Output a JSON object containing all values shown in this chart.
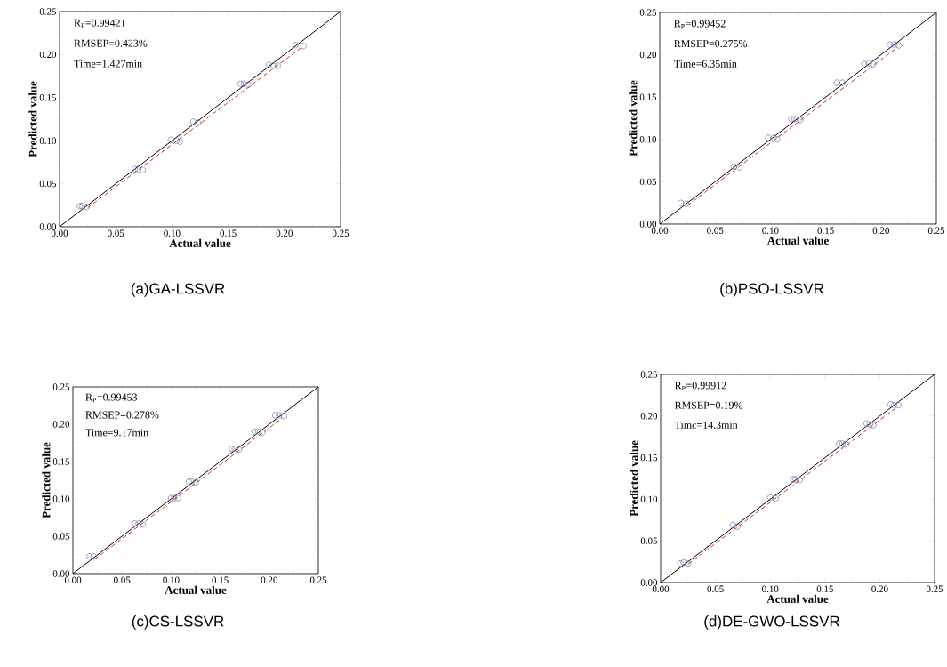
{
  "chart_data": [
    {
      "type": "scatter",
      "title": "(a)GA-LSSVR",
      "xlabel": "Actual value",
      "ylabel": "Predicted value",
      "xlim": [
        0,
        0.25
      ],
      "ylim": [
        0,
        0.25
      ],
      "xticks": [
        {
          "value": 0,
          "label": "0.00"
        },
        {
          "value": 0.05,
          "label": "0.05"
        },
        {
          "value": 0.1,
          "label": "0.10"
        },
        {
          "value": 0.15,
          "label": "0.15"
        },
        {
          "value": 0.2,
          "label": "0.20"
        },
        {
          "value": 0.25,
          "label": "0.25"
        }
      ],
      "yticks": [
        {
          "value": 0,
          "label": "0.00"
        },
        {
          "value": 0.05,
          "label": "0.05"
        },
        {
          "value": 0.1,
          "label": "0.10"
        },
        {
          "value": 0.15,
          "label": "0.15"
        },
        {
          "value": 0.2,
          "label": "0.20"
        },
        {
          "value": 0.25,
          "label": "0.25"
        }
      ],
      "annotations": [
        "R$_{P}$=0.99421",
        "RMSEP=0.423%",
        "Time=1.427min"
      ],
      "series": [
        {
          "marker": "circle",
          "color": "#5a5aa0",
          "x": [
            0.018,
            0.02,
            0.024,
            0.067,
            0.07,
            0.074,
            0.099,
            0.104,
            0.107,
            0.119,
            0.123,
            0.161,
            0.164,
            0.168,
            0.186,
            0.19,
            0.194,
            0.21,
            0.217
          ],
          "values": [
            0.024,
            0.024,
            0.023,
            0.067,
            0.067,
            0.066,
            0.101,
            0.1,
            0.099,
            0.122,
            0.121,
            0.166,
            0.166,
            0.165,
            0.188,
            0.187,
            0.187,
            0.211,
            0.21
          ]
        },
        {
          "type": "line",
          "line_style": "solid",
          "color": "#000000",
          "x": [
            0,
            0.25
          ],
          "values": [
            0,
            0.25
          ]
        },
        {
          "type": "line",
          "line_style": "dashed",
          "color": "#d03030",
          "x": [
            0.025,
            0.215
          ],
          "values": [
            0.022,
            0.208
          ]
        }
      ]
    },
    {
      "type": "scatter",
      "title": "(b)PSO-LSSVR",
      "xlabel": "Actual value",
      "ylabel": "Predicted value",
      "xlim": [
        0,
        0.25
      ],
      "ylim": [
        0,
        0.25
      ],
      "xticks": [
        {
          "value": 0,
          "label": "0.00"
        },
        {
          "value": 0.05,
          "label": "0.05"
        },
        {
          "value": 0.1,
          "label": "0.10"
        },
        {
          "value": 0.15,
          "label": "0.15"
        },
        {
          "value": 0.2,
          "label": "0.20"
        },
        {
          "value": 0.25,
          "label": "0.25"
        }
      ],
      "yticks": [
        {
          "value": 0,
          "label": "0.00"
        },
        {
          "value": 0.05,
          "label": "0.05"
        },
        {
          "value": 0.1,
          "label": "0.10"
        },
        {
          "value": 0.15,
          "label": "0.15"
        },
        {
          "value": 0.2,
          "label": "0.20"
        },
        {
          "value": 0.25,
          "label": "0.25"
        }
      ],
      "annotations": [
        "R$_{P}$=0.99452",
        "RMSEP=0.275%",
        "Time=6.35min"
      ],
      "series": [
        {
          "marker": "circle",
          "color": "#5a5aa0",
          "x": [
            0.019,
            0.024,
            0.067,
            0.072,
            0.098,
            0.103,
            0.106,
            0.119,
            0.122,
            0.127,
            0.16,
            0.165,
            0.185,
            0.189,
            0.193,
            0.208,
            0.212,
            0.216
          ],
          "values": [
            0.025,
            0.024,
            0.068,
            0.067,
            0.102,
            0.102,
            0.1,
            0.124,
            0.124,
            0.123,
            0.167,
            0.167,
            0.189,
            0.19,
            0.189,
            0.212,
            0.212,
            0.211
          ]
        },
        {
          "type": "line",
          "line_style": "solid",
          "color": "#000000",
          "x": [
            0,
            0.25
          ],
          "values": [
            0,
            0.25
          ]
        },
        {
          "type": "line",
          "line_style": "dashed",
          "color": "#d03030",
          "x": [
            0.025,
            0.215
          ],
          "values": [
            0.022,
            0.209
          ]
        }
      ]
    },
    {
      "type": "scatter",
      "title": "(c)CS-LSSVR",
      "xlabel": "Actual value",
      "ylabel": "Predicted value",
      "xlim": [
        0,
        0.25
      ],
      "ylim": [
        0,
        0.25
      ],
      "xticks": [
        {
          "value": 0,
          "label": "0.00"
        },
        {
          "value": 0.05,
          "label": "0.05"
        },
        {
          "value": 0.1,
          "label": "0.10"
        },
        {
          "value": 0.15,
          "label": "0.15"
        },
        {
          "value": 0.2,
          "label": "0.20"
        },
        {
          "value": 0.25,
          "label": "0.25"
        }
      ],
      "yticks": [
        {
          "value": 0,
          "label": "0.00"
        },
        {
          "value": 0.05,
          "label": "0.05"
        },
        {
          "value": 0.1,
          "label": "0.10"
        },
        {
          "value": 0.15,
          "label": "0.15"
        },
        {
          "value": 0.2,
          "label": "0.20"
        },
        {
          "value": 0.25,
          "label": "0.25"
        }
      ],
      "annotations": [
        "R$_{P}$=0.99453",
        "RMSEP=0.278%",
        "Time=9.17min"
      ],
      "series": [
        {
          "marker": "circle",
          "color": "#5a5aa0",
          "x": [
            0.017,
            0.021,
            0.063,
            0.067,
            0.071,
            0.1,
            0.103,
            0.107,
            0.118,
            0.121,
            0.125,
            0.162,
            0.165,
            0.169,
            0.185,
            0.189,
            0.193,
            0.206,
            0.21,
            0.215
          ],
          "values": [
            0.023,
            0.023,
            0.067,
            0.067,
            0.066,
            0.101,
            0.101,
            0.101,
            0.123,
            0.123,
            0.122,
            0.167,
            0.167,
            0.166,
            0.19,
            0.19,
            0.189,
            0.212,
            0.212,
            0.211
          ]
        },
        {
          "type": "line",
          "line_style": "solid",
          "color": "#000000",
          "x": [
            0,
            0.25
          ],
          "values": [
            0,
            0.25
          ]
        },
        {
          "type": "line",
          "line_style": "dashed",
          "color": "#d03030",
          "x": [
            0.022,
            0.213
          ],
          "values": [
            0.019,
            0.208
          ]
        }
      ]
    },
    {
      "type": "scatter",
      "title": "(d)DE-GWO-LSSVR",
      "xlabel": "Actual value",
      "ylabel": "Predicted value",
      "xlim": [
        0,
        0.25
      ],
      "ylim": [
        0,
        0.25
      ],
      "xticks": [
        {
          "value": 0,
          "label": "0.00"
        },
        {
          "value": 0.05,
          "label": "0.05"
        },
        {
          "value": 0.1,
          "label": "0.10"
        },
        {
          "value": 0.15,
          "label": "0.15"
        },
        {
          "value": 0.2,
          "label": "0.20"
        },
        {
          "value": 0.25,
          "label": "0.25"
        }
      ],
      "yticks": [
        {
          "value": 0,
          "label": "0.00"
        },
        {
          "value": 0.05,
          "label": "0.05"
        },
        {
          "value": 0.1,
          "label": "0.10"
        },
        {
          "value": 0.15,
          "label": "0.15"
        },
        {
          "value": 0.2,
          "label": "0.20"
        },
        {
          "value": 0.25,
          "label": "0.25"
        }
      ],
      "annotations": [
        "R$_{P}$=0.99912",
        "RMSEP=0.19%",
        "Timc=14.3min"
      ],
      "series": [
        {
          "marker": "circle",
          "color": "#5a5aa0",
          "x": [
            0.018,
            0.021,
            0.025,
            0.066,
            0.07,
            0.1,
            0.105,
            0.121,
            0.123,
            0.127,
            0.163,
            0.166,
            0.169,
            0.188,
            0.191,
            0.194,
            0.21,
            0.213,
            0.217
          ],
          "values": [
            0.023,
            0.024,
            0.023,
            0.069,
            0.067,
            0.102,
            0.101,
            0.124,
            0.124,
            0.123,
            0.167,
            0.167,
            0.166,
            0.191,
            0.19,
            0.189,
            0.214,
            0.213,
            0.213
          ]
        },
        {
          "type": "line",
          "line_style": "solid",
          "color": "#000000",
          "x": [
            0,
            0.25
          ],
          "values": [
            0,
            0.25
          ]
        },
        {
          "type": "line",
          "line_style": "dashed",
          "color": "#d03030",
          "x": [
            0.025,
            0.215
          ],
          "values": [
            0.022,
            0.21
          ]
        }
      ]
    }
  ]
}
